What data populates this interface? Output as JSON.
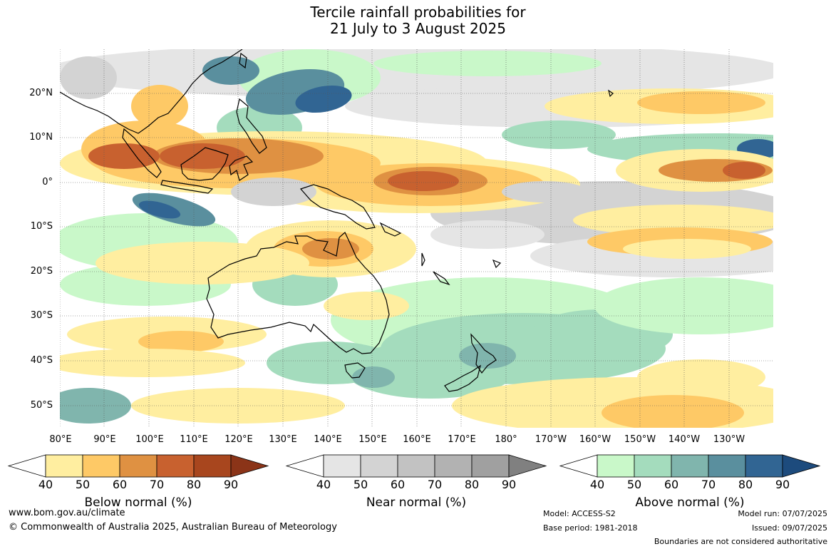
{
  "title": {
    "line1": "Tercile rainfall probabilities for",
    "line2": "21 July to 3 August 2025"
  },
  "map": {
    "lat_labels": [
      "20°N",
      "10°N",
      "0°",
      "10°S",
      "20°S",
      "30°S",
      "40°S",
      "50°S"
    ],
    "lon_labels": [
      "80°E",
      "90°E",
      "100°E",
      "110°E",
      "120°E",
      "130°E",
      "140°E",
      "150°E",
      "160°E",
      "170°E",
      "180°",
      "170°W",
      "160°W",
      "150°W",
      "140°W",
      "130°W"
    ],
    "colors": {
      "below": [
        "#ffffff",
        "#ffeea0",
        "#fec966",
        "#df9142",
        "#c8612f",
        "#a8461e",
        "#8b3418"
      ],
      "near": [
        "#ffffff",
        "#e5e5e5",
        "#d3d3d3",
        "#c2c2c2",
        "#b2b2b2",
        "#a0a0a0",
        "#808080"
      ],
      "above": [
        "#ffffff",
        "#c9f8c9",
        "#a4dcbd",
        "#80b5ad",
        "#5a8f9e",
        "#316593",
        "#1d4b7d"
      ]
    }
  },
  "colorbars": {
    "below": {
      "ticks": [
        "40",
        "50",
        "60",
        "70",
        "80",
        "90"
      ],
      "label": "Below normal (%)"
    },
    "near": {
      "ticks": [
        "40",
        "50",
        "60",
        "70",
        "80",
        "90"
      ],
      "label": "Near normal (%)"
    },
    "above": {
      "ticks": [
        "40",
        "50",
        "60",
        "70",
        "80",
        "90"
      ],
      "label": "Above normal (%)"
    }
  },
  "footer": {
    "website": "www.bom.gov.au/climate",
    "copyright": "© Commonwealth of Australia 2025, Australian Bureau of Meteorology",
    "model": "Model: ACCESS-S2",
    "base_period": "Base period: 1981-2018",
    "model_run": "Model run: 07/07/2025",
    "issued": "Issued: 09/07/2025",
    "disclaimer": "Boundaries are not considered authoritative"
  }
}
